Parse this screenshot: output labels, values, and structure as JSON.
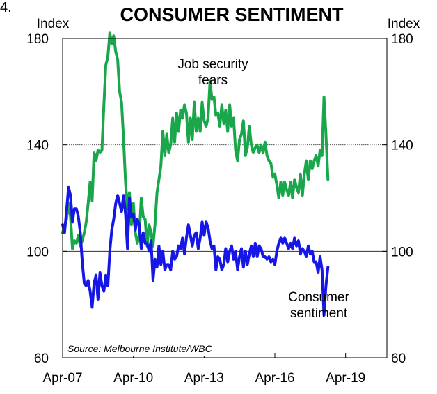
{
  "figure_number": "4.",
  "chart_data": {
    "type": "line",
    "title": "CONSUMER SENTIMENT",
    "ylabel_left": "Index",
    "ylabel_right": "Index",
    "ylim": [
      60,
      180
    ],
    "yticks": [
      60,
      100,
      140,
      180
    ],
    "ytick_labels": [
      "60",
      "100",
      "140",
      "180"
    ],
    "reference_lines": [
      {
        "y": 140,
        "style": "dotted"
      },
      {
        "y": 100,
        "style": "solid"
      }
    ],
    "x_start_month_index": 0,
    "x_end_month_index": 165,
    "xticks": [
      {
        "label": "Apr-07",
        "month_index": 0
      },
      {
        "label": "Apr-10",
        "month_index": 36
      },
      {
        "label": "Apr-13",
        "month_index": 72
      },
      {
        "label": "Apr-16",
        "month_index": 108
      },
      {
        "label": "Apr-19",
        "month_index": 144
      }
    ],
    "source": "Source: Melbourne Institute/WBC",
    "series": [
      {
        "name": "Job security fears",
        "label_lines": [
          "Job security",
          "fears"
        ],
        "color": "#1aa64a",
        "points": [
          [
            0,
            107
          ],
          [
            2,
            112
          ],
          [
            3,
            118
          ],
          [
            4,
            113
          ],
          [
            5,
            101
          ],
          [
            6,
            104
          ],
          [
            7,
            103
          ],
          [
            8,
            106
          ],
          [
            9,
            102
          ],
          [
            10,
            104
          ],
          [
            11,
            107
          ],
          [
            12,
            111
          ],
          [
            13,
            118
          ],
          [
            14,
            126
          ],
          [
            15,
            119
          ],
          [
            16,
            137
          ],
          [
            17,
            134
          ],
          [
            18,
            138
          ],
          [
            19,
            137
          ],
          [
            20,
            138
          ],
          [
            21,
            155
          ],
          [
            22,
            170
          ],
          [
            23,
            173
          ],
          [
            24,
            182
          ],
          [
            25,
            178
          ],
          [
            26,
            181
          ],
          [
            27,
            175
          ],
          [
            28,
            172
          ],
          [
            29,
            160
          ],
          [
            30,
            156
          ],
          [
            31,
            142
          ],
          [
            32,
            126
          ],
          [
            33,
            116
          ],
          [
            34,
            122
          ],
          [
            35,
            110
          ],
          [
            36,
            118
          ],
          [
            37,
            107
          ],
          [
            38,
            103
          ],
          [
            39,
            106
          ],
          [
            40,
            120
          ],
          [
            41,
            113
          ],
          [
            42,
            112
          ],
          [
            43,
            102
          ],
          [
            44,
            110
          ],
          [
            45,
            107
          ],
          [
            46,
            102
          ],
          [
            47,
            110
          ],
          [
            48,
            122
          ],
          [
            49,
            127
          ],
          [
            50,
            132
          ],
          [
            51,
            145
          ],
          [
            52,
            136
          ],
          [
            53,
            144
          ],
          [
            54,
            137
          ],
          [
            55,
            140
          ],
          [
            56,
            150
          ],
          [
            57,
            141
          ],
          [
            58,
            152
          ],
          [
            59,
            145
          ],
          [
            60,
            153
          ],
          [
            61,
            150
          ],
          [
            62,
            155
          ],
          [
            63,
            152
          ],
          [
            64,
            141
          ],
          [
            65,
            150
          ],
          [
            66,
            142
          ],
          [
            67,
            156
          ],
          [
            68,
            145
          ],
          [
            69,
            150
          ],
          [
            70,
            145
          ],
          [
            71,
            156
          ],
          [
            72,
            149
          ],
          [
            73,
            147
          ],
          [
            74,
            150
          ],
          [
            75,
            164
          ],
          [
            76,
            157
          ],
          [
            77,
            158
          ],
          [
            78,
            151
          ],
          [
            79,
            152
          ],
          [
            80,
            147
          ],
          [
            81,
            155
          ],
          [
            82,
            148
          ],
          [
            83,
            153
          ],
          [
            84,
            145
          ],
          [
            85,
            155
          ],
          [
            86,
            147
          ],
          [
            87,
            150
          ],
          [
            88,
            138
          ],
          [
            89,
            134
          ],
          [
            90,
            142
          ],
          [
            91,
            144
          ],
          [
            92,
            149
          ],
          [
            93,
            136
          ],
          [
            94,
            139
          ],
          [
            95,
            147
          ],
          [
            96,
            140
          ],
          [
            97,
            137
          ],
          [
            98,
            139
          ],
          [
            99,
            140
          ],
          [
            100,
            137
          ],
          [
            101,
            140
          ],
          [
            102,
            137
          ],
          [
            103,
            141
          ],
          [
            104,
            136
          ],
          [
            105,
            134
          ],
          [
            106,
            133
          ],
          [
            107,
            128
          ],
          [
            108,
            129
          ],
          [
            109,
            125
          ],
          [
            110,
            120
          ],
          [
            111,
            126
          ],
          [
            112,
            121
          ],
          [
            113,
            126
          ],
          [
            114,
            123
          ],
          [
            115,
            121
          ],
          [
            116,
            126
          ],
          [
            117,
            120
          ],
          [
            118,
            127
          ],
          [
            119,
            124
          ],
          [
            120,
            122
          ],
          [
            121,
            129
          ],
          [
            122,
            121
          ],
          [
            123,
            129
          ],
          [
            124,
            134
          ],
          [
            125,
            127
          ],
          [
            126,
            134
          ],
          [
            127,
            131
          ],
          [
            128,
            134
          ],
          [
            129,
            136
          ],
          [
            130,
            132
          ],
          [
            131,
            138
          ],
          [
            132,
            136
          ],
          [
            133,
            158
          ],
          [
            134,
            144
          ],
          [
            135,
            127
          ]
        ]
      },
      {
        "name": "Consumer sentiment",
        "label_lines": [
          "Consumer",
          "sentiment"
        ],
        "color": "#1616e6",
        "points": [
          [
            0,
            110
          ],
          [
            1,
            107
          ],
          [
            2,
            115
          ],
          [
            3,
            124
          ],
          [
            4,
            121
          ],
          [
            5,
            111
          ],
          [
            6,
            116
          ],
          [
            7,
            116
          ],
          [
            8,
            113
          ],
          [
            9,
            107
          ],
          [
            10,
            96
          ],
          [
            11,
            88
          ],
          [
            12,
            87
          ],
          [
            13,
            89
          ],
          [
            14,
            85
          ],
          [
            15,
            79
          ],
          [
            16,
            88
          ],
          [
            17,
            91
          ],
          [
            18,
            82
          ],
          [
            19,
            92
          ],
          [
            20,
            87
          ],
          [
            21,
            85
          ],
          [
            22,
            91
          ],
          [
            23,
            87
          ],
          [
            24,
            100
          ],
          [
            25,
            108
          ],
          [
            26,
            112
          ],
          [
            27,
            118
          ],
          [
            28,
            121
          ],
          [
            29,
            118
          ],
          [
            30,
            115
          ],
          [
            31,
            121
          ],
          [
            32,
            114
          ],
          [
            33,
            101
          ],
          [
            34,
            120
          ],
          [
            35,
            113
          ],
          [
            36,
            114
          ],
          [
            37,
            108
          ],
          [
            38,
            112
          ],
          [
            39,
            110
          ],
          [
            40,
            101
          ],
          [
            41,
            107
          ],
          [
            42,
            103
          ],
          [
            43,
            103
          ],
          [
            44,
            100
          ],
          [
            45,
            104
          ],
          [
            46,
            89
          ],
          [
            47,
            97
          ],
          [
            48,
            94
          ],
          [
            49,
            102
          ],
          [
            50,
            95
          ],
          [
            51,
            100
          ],
          [
            52,
            93
          ],
          [
            53,
            95
          ],
          [
            54,
            95
          ],
          [
            55,
            93
          ],
          [
            56,
            100
          ],
          [
            57,
            97
          ],
          [
            58,
            98
          ],
          [
            59,
            102
          ],
          [
            60,
            101
          ],
          [
            61,
            105
          ],
          [
            62,
            99
          ],
          [
            63,
            105
          ],
          [
            64,
            110
          ],
          [
            65,
            106
          ],
          [
            66,
            102
          ],
          [
            67,
            106
          ],
          [
            68,
            107
          ],
          [
            69,
            101
          ],
          [
            70,
            105
          ],
          [
            71,
            111
          ],
          [
            72,
            106
          ],
          [
            73,
            111
          ],
          [
            74,
            109
          ],
          [
            75,
            104
          ],
          [
            76,
            101
          ],
          [
            77,
            102
          ],
          [
            78,
            93
          ],
          [
            79,
            98
          ],
          [
            80,
            97
          ],
          [
            81,
            93
          ],
          [
            82,
            95
          ],
          [
            83,
            101
          ],
          [
            84,
            96
          ],
          [
            85,
            100
          ],
          [
            86,
            102
          ],
          [
            87,
            97
          ],
          [
            88,
            100
          ],
          [
            89,
            93
          ],
          [
            90,
            98
          ],
          [
            91,
            101
          ],
          [
            92,
            94
          ],
          [
            93,
            100
          ],
          [
            94,
            95
          ],
          [
            95,
            99
          ],
          [
            96,
            102
          ],
          [
            97,
            98
          ],
          [
            98,
            103
          ],
          [
            99,
            98
          ],
          [
            100,
            102
          ],
          [
            101,
            101
          ],
          [
            102,
            98
          ],
          [
            103,
            98
          ],
          [
            104,
            97
          ],
          [
            105,
            98
          ],
          [
            106,
            96
          ],
          [
            107,
            97
          ],
          [
            108,
            95
          ],
          [
            109,
            100
          ],
          [
            110,
            103
          ],
          [
            111,
            105
          ],
          [
            112,
            103
          ],
          [
            113,
            105
          ],
          [
            114,
            103
          ],
          [
            115,
            101
          ],
          [
            116,
            103
          ],
          [
            117,
            101
          ],
          [
            118,
            105
          ],
          [
            119,
            102
          ],
          [
            120,
            104
          ],
          [
            121,
            99
          ],
          [
            122,
            101
          ],
          [
            123,
            100
          ],
          [
            124,
            98
          ],
          [
            125,
            102
          ],
          [
            126,
            99
          ],
          [
            127,
            100
          ],
          [
            128,
            96
          ],
          [
            129,
            96
          ],
          [
            130,
            92
          ],
          [
            131,
            98
          ],
          [
            132,
            93
          ],
          [
            133,
            76
          ],
          [
            134,
            87
          ],
          [
            135,
            94
          ]
        ]
      }
    ]
  }
}
